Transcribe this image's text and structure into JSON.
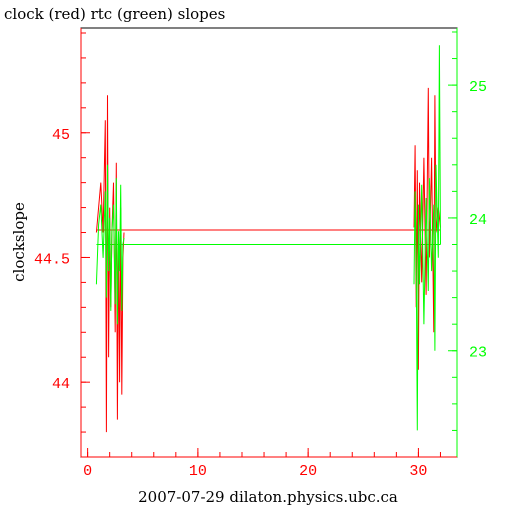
{
  "chart_data": {
    "type": "line",
    "title": "clock (red) rtc (green) slopes",
    "xlabel": "2007-07-29 dilaton.physics.ubc.ca",
    "ylabel": "clockslope",
    "xlim": [
      -0.6,
      33.5
    ],
    "ylim_left": [
      43.7,
      45.42
    ],
    "ylim_right": [
      22.2,
      25.43
    ],
    "x_ticks": [
      0,
      10,
      20,
      30
    ],
    "y_left_ticks": [
      44,
      44.5,
      45
    ],
    "y_left_tick_labels": [
      "44",
      "44.5",
      "45"
    ],
    "y_right_ticks": [
      23,
      24,
      25
    ],
    "y_right_tick_labels": [
      "23",
      "24",
      "25"
    ],
    "series": [
      {
        "name": "clock",
        "axis": "left",
        "color": "#ff0000",
        "x": [
          0.8,
          1.0,
          1.2,
          1.4,
          1.6,
          1.7,
          1.8,
          1.9,
          2.0,
          2.1,
          2.2,
          2.35,
          2.5,
          2.6,
          2.7,
          2.8,
          2.9,
          3.0,
          3.1,
          3.2,
          3.3,
          29.6,
          29.7,
          29.8,
          29.9,
          30.0,
          30.1,
          30.3,
          30.5,
          30.7,
          30.9,
          31.0,
          31.2,
          31.4,
          31.5,
          31.6,
          31.8,
          32.0
        ],
        "y": [
          44.6,
          44.7,
          44.8,
          44.6,
          45.05,
          43.8,
          45.15,
          44.1,
          44.7,
          44.3,
          44.6,
          44.8,
          44.2,
          44.88,
          43.85,
          44.6,
          44.0,
          44.7,
          43.95,
          44.5,
          44.6,
          44.62,
          44.95,
          44.3,
          44.85,
          44.05,
          44.8,
          44.4,
          44.9,
          44.35,
          45.18,
          44.5,
          44.9,
          44.2,
          45.15,
          44.6,
          44.7,
          44.62
        ]
      },
      {
        "name": "rtc",
        "axis": "right",
        "color": "#00ff00",
        "x": [
          0.8,
          1.0,
          1.2,
          1.4,
          1.6,
          1.7,
          1.8,
          1.9,
          2.0,
          2.1,
          2.2,
          2.35,
          2.5,
          2.6,
          2.7,
          2.8,
          2.9,
          3.0,
          3.1,
          3.2,
          3.3,
          29.6,
          29.7,
          29.8,
          29.9,
          30.0,
          30.1,
          30.3,
          30.5,
          30.7,
          30.9,
          31.0,
          31.2,
          31.4,
          31.5,
          31.6,
          31.8,
          31.9,
          32.0
        ],
        "y": [
          23.5,
          23.95,
          24.1,
          23.7,
          24.2,
          23.4,
          24.4,
          23.6,
          24.0,
          23.3,
          23.9,
          24.1,
          23.35,
          24.3,
          23.2,
          23.9,
          23.6,
          24.25,
          23.3,
          23.8,
          23.85,
          23.5,
          24.2,
          23.7,
          22.4,
          24.1,
          23.5,
          24.25,
          23.2,
          24.15,
          23.45,
          24.3,
          23.6,
          24.1,
          23.0,
          24.4,
          23.7,
          25.3,
          23.8
        ]
      }
    ],
    "reference_lines": [
      {
        "series": "clock",
        "axis": "left",
        "y": 44.61
      },
      {
        "series": "rtc",
        "axis": "right",
        "y": 23.8
      }
    ],
    "colors": {
      "clock": "#ff0000",
      "rtc": "#00ff00",
      "axis": "#000000",
      "background": "#ffffff"
    }
  }
}
